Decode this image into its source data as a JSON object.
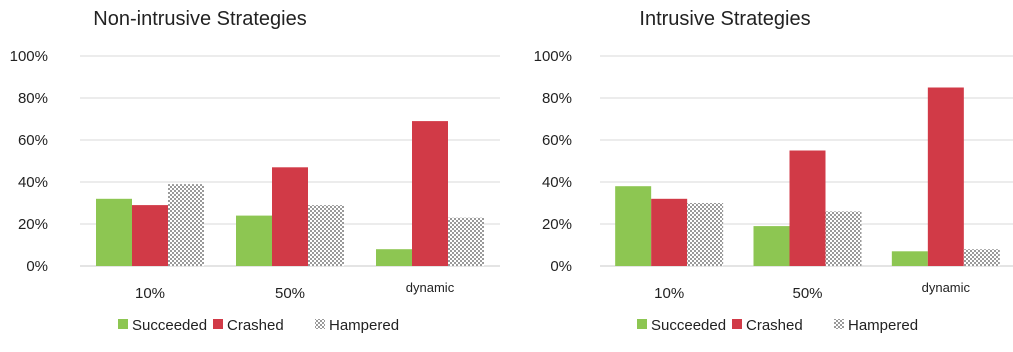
{
  "colors": {
    "Succeeded": "#8dc652",
    "Crashed": "#d13a47",
    "Hampered": "hatch",
    "gridline": "#d9d9d9",
    "axis": "#c8c8c8"
  },
  "chart_data": [
    {
      "type": "bar",
      "title": "Non-intrusive Strategies",
      "categories": [
        "10%",
        "50%",
        "dynamic"
      ],
      "series": [
        {
          "name": "Succeeded",
          "values": [
            32,
            24,
            8
          ]
        },
        {
          "name": "Crashed",
          "values": [
            29,
            47,
            69
          ]
        },
        {
          "name": "Hampered",
          "values": [
            39,
            29,
            23
          ]
        }
      ],
      "ylim": [
        0,
        100
      ],
      "yticks": [
        "0%",
        "20%",
        "40%",
        "60%",
        "80%",
        "100%"
      ],
      "grid": true,
      "legend": "bottom"
    },
    {
      "type": "bar",
      "title": "Intrusive Strategies",
      "categories": [
        "10%",
        "50%",
        "dynamic"
      ],
      "series": [
        {
          "name": "Succeeded",
          "values": [
            38,
            19,
            7
          ]
        },
        {
          "name": "Crashed",
          "values": [
            32,
            55,
            85
          ]
        },
        {
          "name": "Hampered",
          "values": [
            30,
            26,
            8
          ]
        }
      ],
      "ylim": [
        0,
        100
      ],
      "yticks": [
        "0%",
        "20%",
        "40%",
        "60%",
        "80%",
        "100%"
      ],
      "grid": true,
      "legend": "bottom"
    }
  ]
}
